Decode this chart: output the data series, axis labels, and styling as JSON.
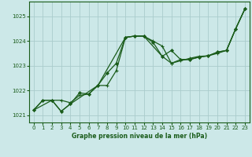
{
  "background_color": "#cce8e8",
  "grid_color": "#aacccc",
  "line_color": "#1a5c1a",
  "xlabel": "Graphe pression niveau de la mer (hPa)",
  "xlim": [
    -0.5,
    23.5
  ],
  "ylim": [
    1020.7,
    1025.6
  ],
  "yticks": [
    1021,
    1022,
    1023,
    1024,
    1025
  ],
  "xticks": [
    0,
    1,
    2,
    3,
    4,
    5,
    6,
    7,
    8,
    9,
    10,
    11,
    12,
    13,
    14,
    15,
    16,
    17,
    18,
    19,
    20,
    21,
    22,
    23
  ],
  "series1_x": [
    0,
    1,
    2,
    3,
    4,
    5,
    6,
    7,
    8,
    9,
    10,
    11,
    12,
    13,
    14,
    15,
    16,
    17,
    18,
    19,
    20,
    21,
    22,
    23
  ],
  "series1_y": [
    1021.2,
    1021.6,
    1021.6,
    1021.6,
    1021.5,
    1021.8,
    1021.85,
    1022.2,
    1022.2,
    1022.8,
    1024.15,
    1024.2,
    1024.2,
    1024.0,
    1023.8,
    1023.1,
    1023.2,
    1023.3,
    1023.38,
    1023.4,
    1023.5,
    1023.62,
    1024.5,
    1025.3
  ],
  "series2_x": [
    0,
    1,
    2,
    3,
    4,
    5,
    6,
    7,
    8,
    9,
    10,
    11,
    12,
    13,
    14,
    15,
    16,
    17,
    18,
    19,
    20,
    21,
    22,
    23
  ],
  "series2_y": [
    1021.2,
    1021.6,
    1021.6,
    1021.15,
    1021.45,
    1021.9,
    1021.85,
    1022.2,
    1022.7,
    1023.1,
    1024.15,
    1024.2,
    1024.2,
    1023.95,
    1023.38,
    1023.62,
    1023.25,
    1023.25,
    1023.35,
    1023.4,
    1023.55,
    1023.62,
    1024.5,
    1025.3
  ],
  "series3_x": [
    0,
    2,
    3,
    4,
    7,
    10,
    11,
    12,
    14,
    15,
    16,
    17,
    18,
    19,
    20,
    21,
    22,
    23
  ],
  "series3_y": [
    1021.2,
    1021.6,
    1021.15,
    1021.45,
    1022.2,
    1024.15,
    1024.2,
    1024.2,
    1023.38,
    1023.1,
    1023.25,
    1023.25,
    1023.35,
    1023.4,
    1023.55,
    1023.62,
    1024.5,
    1025.3
  ]
}
